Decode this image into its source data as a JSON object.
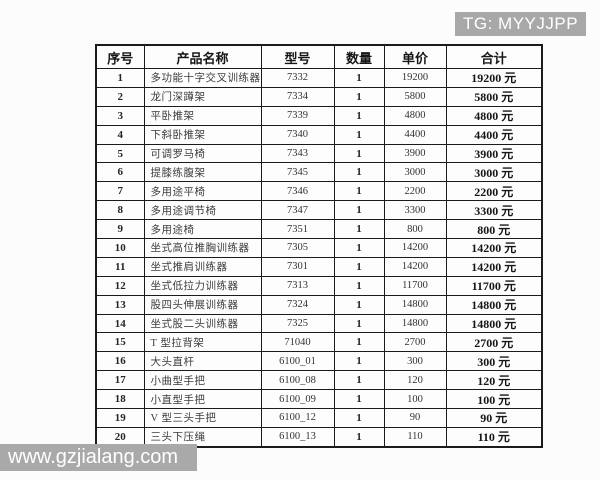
{
  "watermarks": {
    "top_right": {
      "label": "TG: MYYJJPP",
      "bg": "#a8a8a8",
      "color": "#ffffff"
    },
    "bottom_left": {
      "label": "www.gzjialang.com",
      "bg": "#a9a9a9",
      "color": "#ffffff"
    }
  },
  "table": {
    "headers": [
      "序号",
      "产品名称",
      "型号",
      "数量",
      "单价",
      "合计"
    ],
    "currency_suffix": "元",
    "rows": [
      {
        "no": "1",
        "name": "多功能十字交叉训练器",
        "model": "7332",
        "qty": "1",
        "unit_price": "19200",
        "total": "19200 元"
      },
      {
        "no": "2",
        "name": "龙门深蹲架",
        "model": "7334",
        "qty": "1",
        "unit_price": "5800",
        "total": "5800 元"
      },
      {
        "no": "3",
        "name": "平卧推架",
        "model": "7339",
        "qty": "1",
        "unit_price": "4800",
        "total": "4800 元"
      },
      {
        "no": "4",
        "name": "下斜卧推架",
        "model": "7340",
        "qty": "1",
        "unit_price": "4400",
        "total": "4400 元"
      },
      {
        "no": "5",
        "name": "可调罗马椅",
        "model": "7343",
        "qty": "1",
        "unit_price": "3900",
        "total": "3900 元"
      },
      {
        "no": "6",
        "name": "提膝练腹架",
        "model": "7345",
        "qty": "1",
        "unit_price": "3000",
        "total": "3000 元"
      },
      {
        "no": "7",
        "name": "多用途平椅",
        "model": "7346",
        "qty": "1",
        "unit_price": "2200",
        "total": "2200 元"
      },
      {
        "no": "8",
        "name": "多用途调节椅",
        "model": "7347",
        "qty": "1",
        "unit_price": "3300",
        "total": "3300 元"
      },
      {
        "no": "9",
        "name": "多用途椅",
        "model": "7351",
        "qty": "1",
        "unit_price": "800",
        "total": "800 元"
      },
      {
        "no": "10",
        "name": "坐式高位推胸训练器",
        "model": "7305",
        "qty": "1",
        "unit_price": "14200",
        "total": "14200 元"
      },
      {
        "no": "11",
        "name": "坐式推肩训练器",
        "model": "7301",
        "qty": "1",
        "unit_price": "14200",
        "total": "14200 元"
      },
      {
        "no": "12",
        "name": "坐式低拉力训练器",
        "model": "7313",
        "qty": "1",
        "unit_price": "11700",
        "total": "11700 元"
      },
      {
        "no": "13",
        "name": "股四头伸展训练器",
        "model": "7324",
        "qty": "1",
        "unit_price": "14800",
        "total": "14800 元"
      },
      {
        "no": "14",
        "name": "坐式股二头训练器",
        "model": "7325",
        "qty": "1",
        "unit_price": "14800",
        "total": "14800 元"
      },
      {
        "no": "15",
        "name": "T 型拉背架",
        "model": "71040",
        "qty": "1",
        "unit_price": "2700",
        "total": "2700 元"
      },
      {
        "no": "16",
        "name": "大头直杆",
        "model": "6100_01",
        "qty": "1",
        "unit_price": "300",
        "total": "300 元"
      },
      {
        "no": "17",
        "name": "小曲型手把",
        "model": "6100_08",
        "qty": "1",
        "unit_price": "120",
        "total": "120 元"
      },
      {
        "no": "18",
        "name": "小直型手把",
        "model": "6100_09",
        "qty": "1",
        "unit_price": "100",
        "total": "100 元"
      },
      {
        "no": "19",
        "name": "V 型三头手把",
        "model": "6100_12",
        "qty": "1",
        "unit_price": "90",
        "total": "90 元"
      },
      {
        "no": "20",
        "name": "三头下压绳",
        "model": "6100_13",
        "qty": "1",
        "unit_price": "110",
        "total": "110 元"
      }
    ]
  }
}
